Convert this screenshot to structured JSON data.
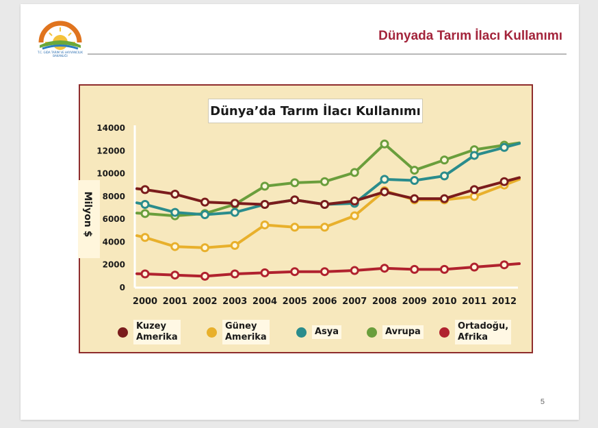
{
  "slide": {
    "title": "Dünyada Tarım İlacı Kullanımı",
    "page_number": "5",
    "logo_text": "T.C.\nGIDA TARIM VE HAYVANCILIK\nBAKANLIĞI"
  },
  "colors": {
    "title": "#a3243b",
    "frame_border": "#8e2c2c",
    "chart_bg": "#f7e8bd"
  },
  "chart_data": {
    "type": "line",
    "title": "Dünya’da Tarım İlacı Kullanımı",
    "ylabel": "Milyon $",
    "xlabel": "",
    "ylim": [
      0,
      14000
    ],
    "yticks": [
      0,
      2000,
      4000,
      6000,
      8000,
      10000,
      12000,
      14000
    ],
    "categories": [
      "2000",
      "2001",
      "2002",
      "2003",
      "2004",
      "2005",
      "2006",
      "2007",
      "2008",
      "2009",
      "2010",
      "2011",
      "2012"
    ],
    "grid": false,
    "legend": "bottom",
    "series": [
      {
        "name": "Kuzey\nAmerika",
        "color": "#7a1c1c",
        "values": [
          8600,
          8200,
          7500,
          7400,
          7300,
          7700,
          7300,
          7600,
          8400,
          7800,
          7800,
          8600,
          9300
        ]
      },
      {
        "name": "Güney\nAmerika",
        "color": "#e8b02c",
        "values": [
          4400,
          3600,
          3500,
          3700,
          5500,
          5300,
          5300,
          6300,
          8500,
          7700,
          7700,
          8000,
          9000
        ]
      },
      {
        "name": "Asya",
        "color": "#2a8c8c",
        "values": [
          7300,
          6600,
          6400,
          6600,
          7300,
          7700,
          7300,
          7400,
          9500,
          9400,
          9800,
          11600,
          12300
        ]
      },
      {
        "name": "Avrupa",
        "color": "#6a9e3c",
        "values": [
          6500,
          6300,
          6500,
          7300,
          8900,
          9200,
          9300,
          10100,
          12600,
          10300,
          11200,
          12100,
          12500
        ]
      },
      {
        "name": "Ortadoğu,\nAfrika",
        "color": "#b0222e",
        "values": [
          1200,
          1100,
          1000,
          1200,
          1300,
          1400,
          1400,
          1500,
          1700,
          1600,
          1600,
          1800,
          2000
        ]
      }
    ]
  }
}
